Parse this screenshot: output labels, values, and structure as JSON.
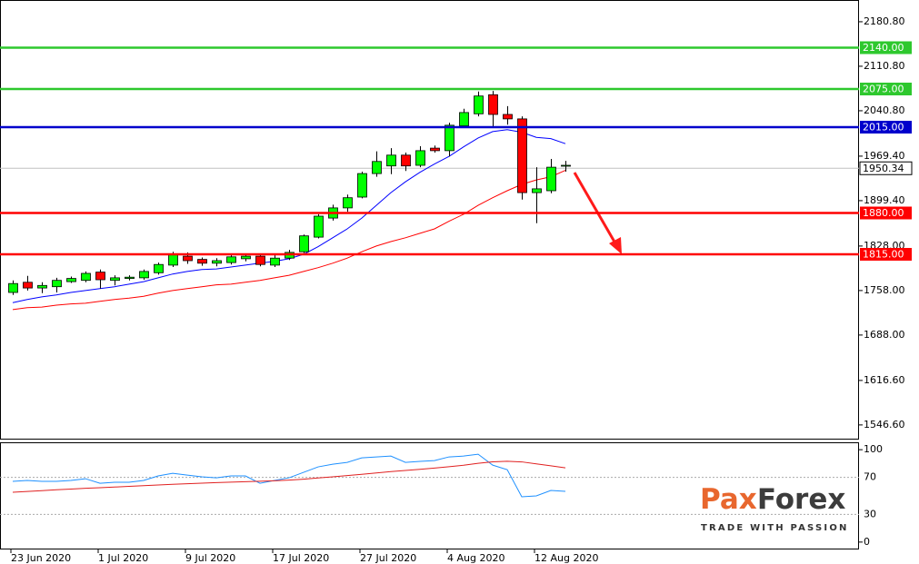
{
  "chart_data": {
    "type": "candlestick",
    "categories": [
      "23 Jun 2020",
      null,
      null,
      null,
      null,
      null,
      "1 Jul 2020",
      null,
      null,
      null,
      null,
      null,
      "9 Jul 2020",
      null,
      null,
      null,
      null,
      null,
      "17 Jul 2020",
      null,
      null,
      null,
      null,
      null,
      "27 Jul 2020",
      null,
      null,
      null,
      null,
      null,
      "4 Aug 2020",
      null,
      null,
      null,
      null,
      null,
      "12 Aug 2020",
      null,
      null
    ],
    "open": [
      1755,
      1771,
      1762,
      1764,
      1772,
      1774,
      1787,
      1774,
      1777,
      1778,
      1786,
      1798,
      1812,
      1807,
      1801,
      1802,
      1808,
      1812,
      1798,
      1809,
      1819,
      1842,
      1872,
      1888,
      1905,
      1942,
      1954,
      1971,
      1955,
      1982,
      1978,
      2017,
      2036,
      2066,
      2035,
      2028,
      1912,
      1915,
      1954
    ],
    "high": [
      1774,
      1781,
      1771,
      1778,
      1780,
      1788,
      1791,
      1782,
      1782,
      1791,
      1802,
      1819,
      1818,
      1810,
      1809,
      1815,
      1815,
      1816,
      1814,
      1822,
      1846,
      1878,
      1893,
      1909,
      1945,
      1977,
      1982,
      1975,
      1985,
      1986,
      2022,
      2044,
      2071,
      2072,
      2048,
      2032,
      1952,
      1965,
      1962
    ],
    "low": [
      1751,
      1758,
      1754,
      1755,
      1770,
      1771,
      1761,
      1766,
      1774,
      1775,
      1783,
      1795,
      1800,
      1797,
      1796,
      1799,
      1804,
      1796,
      1795,
      1806,
      1817,
      1840,
      1868,
      1882,
      1903,
      1937,
      1941,
      1946,
      1952,
      1975,
      1969,
      2014,
      2032,
      2015,
      2019,
      1901,
      1864,
      1911,
      1945
    ],
    "close": [
      1769,
      1762,
      1766,
      1774,
      1777,
      1785,
      1775,
      1778,
      1779,
      1788,
      1799,
      1814,
      1805,
      1801,
      1805,
      1811,
      1812,
      1799,
      1809,
      1818,
      1844,
      1875,
      1888,
      1904,
      1942,
      1961,
      1971,
      1954,
      1978,
      1978,
      2018,
      2038,
      2064,
      2035,
      2028,
      1912,
      1918,
      1952,
      1955
    ],
    "up_color": "#00ff00",
    "down_color": "#ff0000",
    "ylim": [
      1525,
      2215
    ],
    "yticks": [
      {
        "value": 2180.8,
        "label": "2180.80"
      },
      {
        "value": 2110.8,
        "label": "2110.80"
      },
      {
        "value": 2040.8,
        "label": "2040.80"
      },
      {
        "value": 1969.4,
        "label": "1969.40"
      },
      {
        "value": 1899.4,
        "label": "1899.40"
      },
      {
        "value": 1828,
        "label": "1828.00"
      },
      {
        "value": 1758,
        "label": "1758.00"
      },
      {
        "value": 1688,
        "label": "1688.00"
      },
      {
        "value": 1616.6,
        "label": "1616.60"
      },
      {
        "value": 1546.6,
        "label": "1546.60"
      }
    ],
    "lines": [
      {
        "color": "#0000ff",
        "values": [
          1739,
          1744,
          1748,
          1751,
          1755,
          1758,
          1761,
          1764,
          1768,
          1772,
          1778,
          1784,
          1788,
          1791,
          1792,
          1795,
          1798,
          1801,
          1804,
          1808,
          1815,
          1827,
          1841,
          1855,
          1872,
          1892,
          1912,
          1929,
          1944,
          1957,
          1969,
          1984,
          1998,
          2008,
          2011,
          2007,
          1999,
          1997,
          1989
        ]
      },
      {
        "color": "#ff0000",
        "values": [
          1728,
          1731,
          1732,
          1735,
          1737,
          1738,
          1741,
          1744,
          1746,
          1749,
          1754,
          1758,
          1761,
          1764,
          1767,
          1768,
          1771,
          1774,
          1778,
          1782,
          1788,
          1794,
          1801,
          1809,
          1819,
          1828,
          1835,
          1841,
          1848,
          1855,
          1867,
          1878,
          1892,
          1904,
          1915,
          1925,
          1932,
          1937,
          1947
        ]
      }
    ],
    "levels": [
      {
        "value": 2140,
        "label": "2140.00",
        "color": "#2ec82e"
      },
      {
        "value": 2075,
        "label": "2075.00",
        "color": "#2ec82e"
      },
      {
        "value": 2015,
        "label": "2015.00",
        "color": "#0000cc"
      },
      {
        "value": 1880,
        "label": "1880.00",
        "color": "#ff0000"
      },
      {
        "value": 1815,
        "label": "1815.00",
        "color": "#ff0000"
      }
    ],
    "current_price": {
      "value": 1950.34,
      "label": "1950.34",
      "color": "#c0c0c0"
    },
    "indicator": {
      "ylim": [
        -8,
        108
      ],
      "yticks": [
        100,
        70,
        30,
        0
      ],
      "series": [
        {
          "color": "#1e90ff",
          "values": [
            65.7,
            66.7,
            65.7,
            65.7,
            66.7,
            68.6,
            63.7,
            64.7,
            64.7,
            66.7,
            71.6,
            74.5,
            72.5,
            70.6,
            69.6,
            71.6,
            71.6,
            63.7,
            66.7,
            69.6,
            75.5,
            81.4,
            84.3,
            86.3,
            91.2,
            92.2,
            93.1,
            86.3,
            87.3,
            88.2,
            92.2,
            93.1,
            95.1,
            83.3,
            78.4,
            49.0,
            50.0,
            55.9,
            54.9
          ]
        },
        {
          "color": "#e02020",
          "values": [
            53.9,
            54.8,
            55.7,
            56.6,
            57.4,
            58.2,
            58.9,
            59.6,
            60.3,
            61.0,
            61.8,
            62.5,
            63.2,
            63.8,
            64.4,
            64.9,
            65.4,
            65.9,
            66.4,
            67.1,
            68.1,
            69.4,
            70.7,
            72.0,
            73.3,
            74.8,
            76.3,
            77.5,
            78.8,
            80.1,
            81.6,
            83.2,
            85.3,
            86.9,
            87.5,
            86.8,
            84.7,
            82.6,
            80.4
          ]
        }
      ]
    },
    "logo": {
      "parts": [
        "Pax",
        "Forex"
      ],
      "tagline": "TRADE WITH PASSION"
    }
  }
}
